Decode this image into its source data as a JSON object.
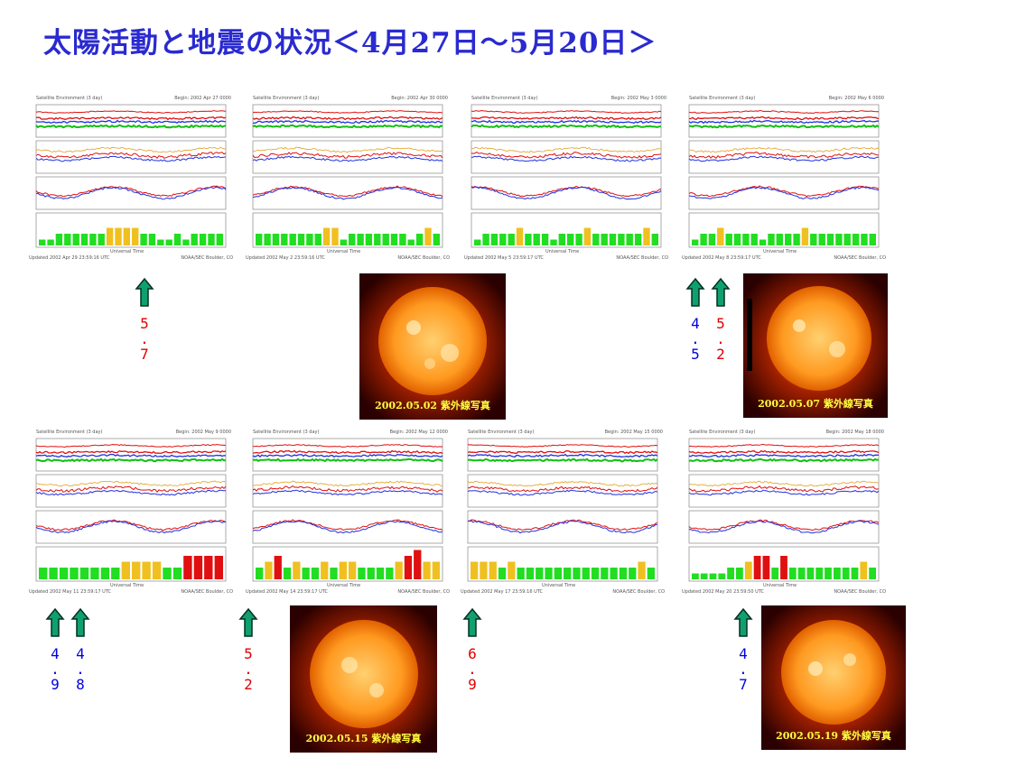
{
  "title": "太陽活動と地震の状況＜4月27日～5月20日＞",
  "panel_labels": {
    "header": "Satellite Environment (3 day)",
    "footer_center": "Universal Time",
    "footer_right": "NOAA/SEC Boulder, CO"
  },
  "top_row": [
    {
      "begin": "Begin: 2002 Apr 27 0000",
      "updated": "Updated 2002 Apr 29 23:59:16 UTC"
    },
    {
      "begin": "Begin: 2002 Apr 30 0000",
      "updated": "Updated 2002 May 2 23:59:16 UTC"
    },
    {
      "begin": "Begin: 2002 May 3 0000",
      "updated": "Updated 2002 May 5 23:59:17 UTC"
    },
    {
      "begin": "Begin: 2002 May 6 0000",
      "updated": "Updated 2002 May 8 23:59:17 UTC"
    }
  ],
  "bottom_row": [
    {
      "begin": "Begin: 2002 May 9 0000",
      "updated": "Updated 2002 May 11 23:59:17 UTC"
    },
    {
      "begin": "Begin: 2002 May 12 0000",
      "updated": "Updated 2002 May 14 23:59:17 UTC"
    },
    {
      "begin": "Begin: 2002 May 15 0000",
      "updated": "Updated 2002 May 17 23:59:16 UTC"
    },
    {
      "begin": "Begin: 2002 May 18 0000",
      "updated": "Updated 2002 May 20 23:59:50 UTC"
    }
  ],
  "quakes": [
    {
      "d1": "5",
      "d2": "7",
      "color": "#e00000"
    },
    {
      "d1": "4",
      "d2": "5",
      "color": "#0000e0"
    },
    {
      "d1": "5",
      "d2": "2",
      "color": "#e00000"
    },
    {
      "d1": "4",
      "d2": "9",
      "color": "#0000e0"
    },
    {
      "d1": "4",
      "d2": "8",
      "color": "#0000e0"
    },
    {
      "d1": "5",
      "d2": "2",
      "color": "#e00000"
    },
    {
      "d1": "6",
      "d2": "9",
      "color": "#e00000"
    },
    {
      "d1": "4",
      "d2": "7",
      "color": "#0000e0"
    }
  ],
  "sun_captions": {
    "s1": "2002.05.02 紫外線写真",
    "s2": "2002.05.07 紫外線写真",
    "s3": "2002.05.15 紫外線写真",
    "s4": "2002.05.19 紫外線写真"
  },
  "kp_top": [
    [
      1,
      1,
      2,
      2,
      2,
      2,
      2,
      2,
      3,
      3,
      3,
      3,
      2,
      2,
      1,
      1,
      2,
      1,
      2,
      2,
      2,
      2
    ],
    [
      2,
      2,
      2,
      2,
      2,
      2,
      2,
      2,
      3,
      3,
      1,
      2,
      2,
      2,
      2,
      2,
      2,
      2,
      1,
      2,
      3,
      2
    ],
    [
      1,
      2,
      2,
      2,
      2,
      3,
      2,
      2,
      2,
      1,
      2,
      2,
      2,
      3,
      2,
      2,
      2,
      2,
      2,
      2,
      3,
      2
    ],
    [
      1,
      2,
      2,
      3,
      2,
      2,
      2,
      2,
      1,
      2,
      2,
      2,
      2,
      3,
      2,
      2,
      2,
      2,
      2,
      2,
      2,
      2
    ]
  ],
  "kp_bottom": [
    [
      2,
      2,
      2,
      2,
      2,
      2,
      2,
      2,
      3,
      3,
      3,
      3,
      2,
      2,
      4,
      4,
      4,
      4
    ],
    [
      2,
      3,
      4,
      2,
      3,
      2,
      2,
      3,
      2,
      3,
      3,
      2,
      2,
      2,
      2,
      3,
      4,
      5,
      3,
      3
    ],
    [
      3,
      3,
      3,
      2,
      3,
      2,
      2,
      2,
      2,
      2,
      2,
      2,
      2,
      2,
      2,
      2,
      2,
      2,
      3,
      2
    ],
    [
      1,
      1,
      1,
      1,
      2,
      2,
      3,
      4,
      4,
      2,
      4,
      2,
      2,
      2,
      2,
      2,
      2,
      2,
      2,
      3,
      2
    ]
  ],
  "kp_colors": {
    "quiet": "#22dd22",
    "active": "#f0c020",
    "storm": "#e01010"
  }
}
